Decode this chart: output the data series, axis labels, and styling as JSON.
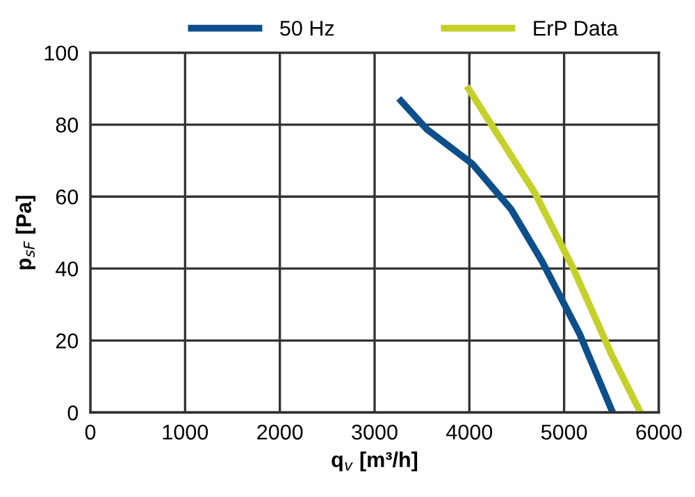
{
  "chart_data": {
    "type": "line",
    "xlabel": "q$_{v}$ [m³/h]",
    "ylabel": "p$_{sF}$ [Pa]",
    "xlim": [
      0,
      6000
    ],
    "xticks": [
      0,
      1000,
      2000,
      3000,
      4000,
      5000,
      6000
    ],
    "ylim": [
      0,
      100
    ],
    "yticks": [
      0,
      20,
      40,
      60,
      80,
      100
    ],
    "grid": true,
    "legend": "top",
    "marker": "none",
    "line_style": "solid",
    "series": [
      {
        "name": "50 Hz",
        "color": "#0d4f8b",
        "x": [
          3255,
          3548,
          4032,
          4443,
          4765,
          5161,
          5513
        ],
        "values": [
          87.3,
          78.8,
          69.1,
          56.4,
          42.1,
          22,
          0
        ]
      },
      {
        "name": "ErP Data",
        "color": "#c5d12a",
        "x": [
          3974,
          4692,
          5088,
          5499,
          5806
        ],
        "values": [
          90.7,
          61,
          40.5,
          16.2,
          0
        ]
      }
    ]
  }
}
